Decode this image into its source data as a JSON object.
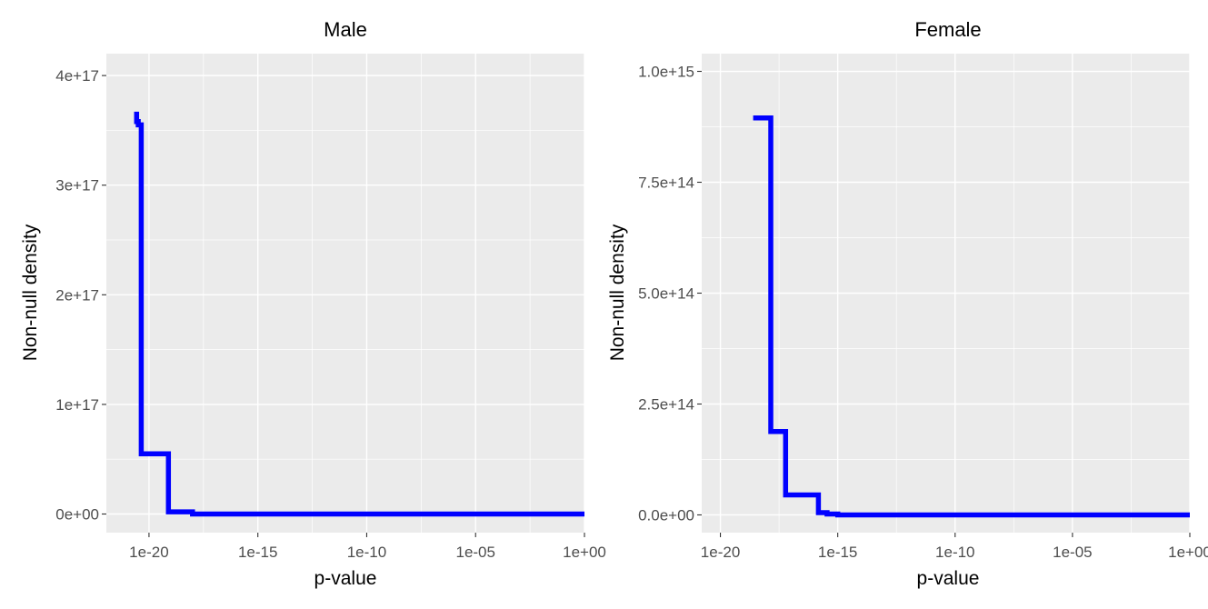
{
  "chart_data": [
    {
      "type": "line",
      "title": "Male",
      "xlabel": "p-value",
      "ylabel": "Non-null density",
      "x_scale": "log10",
      "xlim": [
        1.1e-22,
        1
      ],
      "ylim": [
        -1.7e+16,
        4.2e+17
      ],
      "grid": true,
      "x_ticks": [
        "1e-20",
        "1e-15",
        "1e-10",
        "1e-05",
        "1e+00"
      ],
      "x_tick_values": [
        1e-20,
        1e-15,
        1e-10,
        1e-05,
        1
      ],
      "y_ticks": [
        "0e+00",
        "1e+17",
        "2e+17",
        "3e+17",
        "4e+17"
      ],
      "y_tick_values": [
        0,
        1e+17,
        2e+17,
        3e+17,
        4e+17
      ],
      "series": [
        {
          "color": "#0000ff",
          "x": [
            2.7e-21,
            2.7e-21,
            3.2e-21,
            3.2e-21,
            4.4e-21,
            4.4e-21,
            7.8e-20,
            7.8e-20,
            1e-18,
            1e-18,
            1
          ],
          "y": [
            3.67e+17,
            3.58e+17,
            3.58e+17,
            3.55e+17,
            3.55e+17,
            5.5e+16,
            5.5e+16,
            2000000000000000.0,
            2000000000000000.0,
            0,
            0
          ]
        }
      ]
    },
    {
      "type": "line",
      "title": "Female",
      "xlabel": "p-value",
      "ylabel": "Non-null density",
      "x_scale": "log10",
      "xlim": [
        1.6e-21,
        1
      ],
      "ylim": [
        -40000000000000.0,
        1040000000000000.0
      ],
      "grid": true,
      "x_ticks": [
        "1e-20",
        "1e-15",
        "1e-10",
        "1e-05",
        "1e+00"
      ],
      "x_tick_values": [
        1e-20,
        1e-15,
        1e-10,
        1e-05,
        1
      ],
      "y_ticks": [
        "0.0e+00",
        "2.5e+14",
        "5.0e+14",
        "7.5e+14",
        "1.0e+15"
      ],
      "y_tick_values": [
        0,
        250000000000000.0,
        500000000000000.0,
        750000000000000.0,
        1000000000000000.0
      ],
      "series": [
        {
          "color": "#0000ff",
          "x": [
            2.5e-19,
            1.4e-18,
            1.4e-18,
            6e-18,
            6e-18,
            1.5e-16,
            1.5e-16,
            3.5e-16,
            3.5e-16,
            1e-15,
            1e-15,
            1
          ],
          "y": [
            895000000000000.0,
            895000000000000.0,
            188000000000000.0,
            188000000000000.0,
            45000000000000.0,
            45000000000000.0,
            5000000000000.0,
            5000000000000.0,
            2000000000000.0,
            2000000000000.0,
            0,
            0
          ]
        }
      ]
    }
  ]
}
